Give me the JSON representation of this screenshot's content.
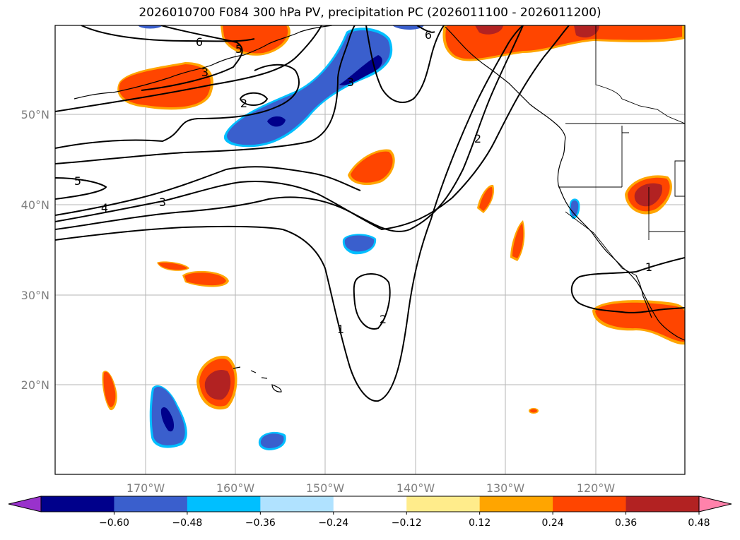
{
  "title": "2026010700 F084 300 hPa PV, precipitation PC (2026011100 - 2026011200)",
  "lat_labels": [
    "50°N",
    "40°N",
    "30°N",
    "20°N"
  ],
  "lon_labels": [
    "170°W",
    "160°W",
    "150°W",
    "140°W",
    "130°W",
    "120°W"
  ],
  "contour_labels": [
    "6",
    "5",
    "3",
    "2",
    "6",
    "3",
    "2",
    "5",
    "4",
    "3",
    "1",
    "2",
    "1"
  ],
  "colorbar": {
    "ticks": [
      "−0.60",
      "−0.48",
      "−0.36",
      "−0.24",
      "−0.12",
      "0.12",
      "0.24",
      "0.36",
      "0.48",
      "0.60"
    ],
    "colors": [
      "#9932cc",
      "#00008b",
      "#3a5fcd",
      "#00bfff",
      "#b0e2ff",
      "#ffffff",
      "#ffec8b",
      "#ffa500",
      "#ff4500",
      "#b22222",
      "#ff82ab"
    ]
  },
  "colors": {
    "strong_neg": "#00008b",
    "neg": "#3a5fcd",
    "weak_neg": "#00bfff",
    "weak_pos": "#ffec8b",
    "pos_mid": "#ffa500",
    "pos": "#ff4500",
    "strong_pos": "#b22222"
  }
}
